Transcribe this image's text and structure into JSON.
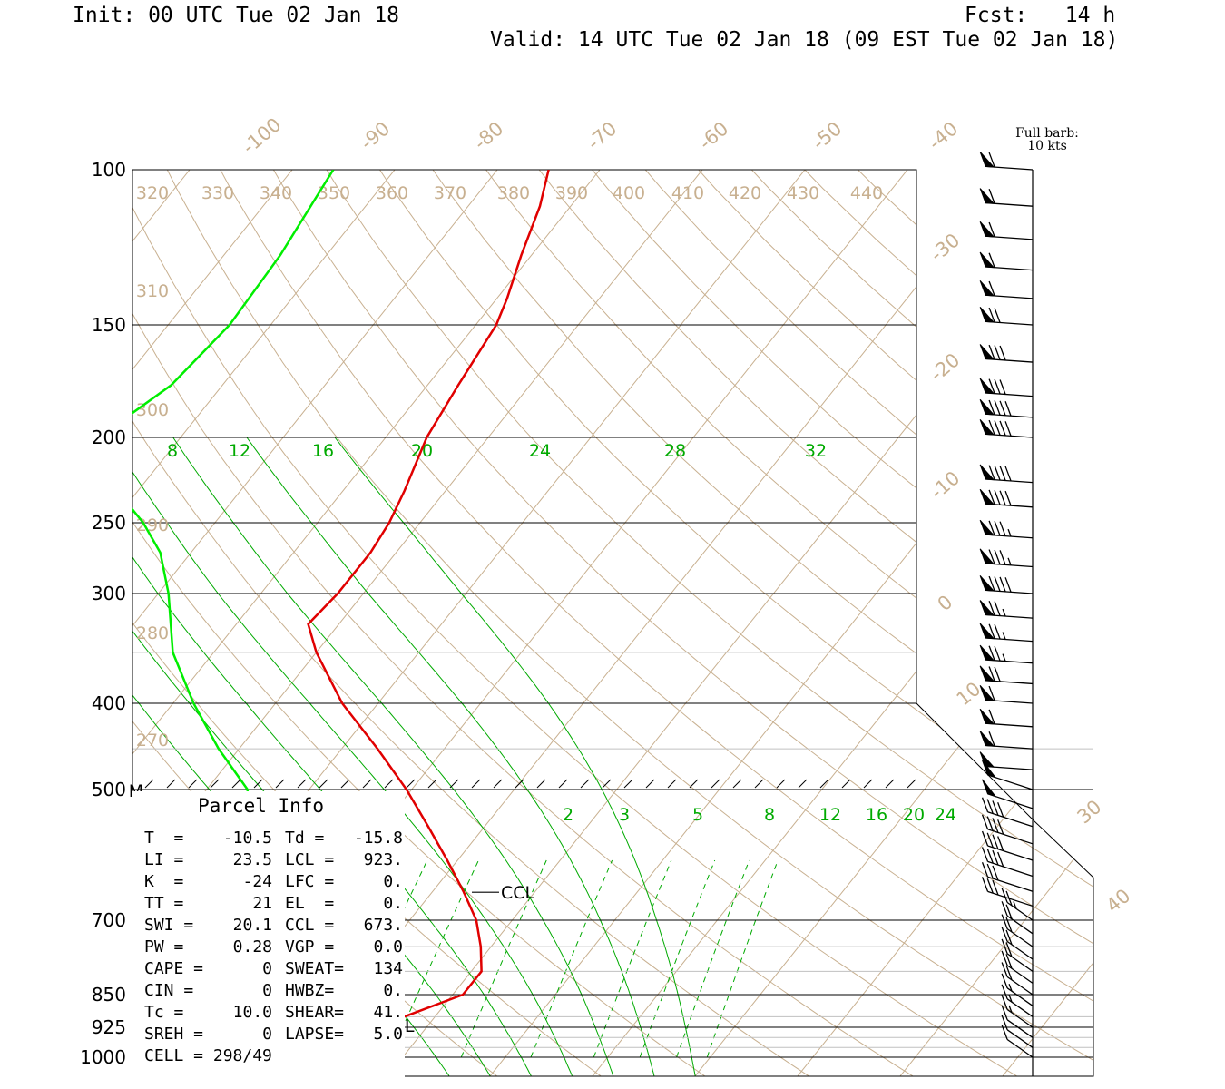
{
  "header": {
    "init": "Init: 00 UTC Tue 02 Jan 18",
    "fcst": "Fcst:   14 h",
    "valid": "Valid: 14 UTC Tue 02 Jan 18 (09 EST Tue 02 Jan 18)"
  },
  "barb_legend": {
    "line1": "Full barb:",
    "line2": "10 kts"
  },
  "parcel_info": {
    "title": "Parcel Info",
    "rows": [
      {
        "l": "T  =",
        "lv": "-10.5",
        "r": "Td =",
        "rv": "-15.8"
      },
      {
        "l": "LI =",
        "lv": "23.5",
        "r": "LCL =",
        "rv": "923."
      },
      {
        "l": "K  =",
        "lv": "-24",
        "r": "LFC =",
        "rv": "0."
      },
      {
        "l": "TT =",
        "lv": "21",
        "r": "EL  =",
        "rv": "0."
      },
      {
        "l": "SWI =",
        "lv": "20.1",
        "r": "CCL =",
        "rv": "673."
      },
      {
        "l": "PW =",
        "lv": "0.28",
        "r": "VGP =",
        "rv": "0.0"
      },
      {
        "l": "CAPE =",
        "lv": "0",
        "r": "SWEAT=",
        "rv": "134"
      },
      {
        "l": "CIN =",
        "lv": "0",
        "r": "HWBZ=",
        "rv": "0."
      },
      {
        "l": "Tc =",
        "lv": "10.0",
        "r": "SHEAR=",
        "rv": "41."
      },
      {
        "l": "SREH =",
        "lv": "0",
        "r": "LAPSE=",
        "rv": "5.0"
      },
      {
        "l": "CELL = 298/49",
        "lv": "",
        "r": "",
        "rv": ""
      }
    ]
  },
  "annotations": {
    "ccl": "CCL",
    "lcl": "LCL",
    "mid_marker": "M"
  },
  "colors": {
    "temperature": "#e00000",
    "dewpoint": "#00ee00",
    "isotherm": "#c8b090",
    "dry_adiabat": "#c8b090",
    "moist_adiabat": "#00aa00",
    "mixing_ratio": "#00aa00",
    "isobar": "#000000"
  },
  "chart_data": {
    "type": "skew-t",
    "pressure_levels": [
      100,
      150,
      200,
      250,
      300,
      400,
      500,
      700,
      850,
      925,
      1000
    ],
    "pressure_labels": [
      "100",
      "150",
      "200",
      "250",
      "300",
      "400",
      "500",
      "700",
      "850",
      "925",
      "1000"
    ],
    "isotherm_labels": [
      "-100",
      "-90",
      "-80",
      "-70",
      "-60",
      "-50",
      "-40",
      "-30",
      "-20",
      "-10",
      "0",
      "10",
      "30",
      "40"
    ],
    "dry_adiabat_labels": [
      "320",
      "330",
      "340",
      "350",
      "360",
      "370",
      "380",
      "390",
      "400",
      "410",
      "420",
      "430",
      "440",
      "310",
      "300",
      "290",
      "280",
      "270"
    ],
    "moist_adiabat_labels": [
      "8",
      "12",
      "16",
      "20",
      "24",
      "28",
      "32"
    ],
    "mixing_ratio_labels": [
      "2",
      "3",
      "5",
      "8",
      "12",
      "16",
      "20",
      "24"
    ],
    "temperature_profile_C": [
      {
        "p": 1000,
        "t": -10.5
      },
      {
        "p": 975,
        "t": -12.5
      },
      {
        "p": 925,
        "t": -14.5
      },
      {
        "p": 900,
        "t": -13.0
      },
      {
        "p": 850,
        "t": -9.0
      },
      {
        "p": 800,
        "t": -9.0
      },
      {
        "p": 750,
        "t": -11.0
      },
      {
        "p": 700,
        "t": -13.5
      },
      {
        "p": 650,
        "t": -17.0
      },
      {
        "p": 600,
        "t": -21.0
      },
      {
        "p": 550,
        "t": -25.5
      },
      {
        "p": 500,
        "t": -30.5
      },
      {
        "p": 450,
        "t": -36.5
      },
      {
        "p": 400,
        "t": -43.5
      },
      {
        "p": 350,
        "t": -50.0
      },
      {
        "p": 325,
        "t": -53.0
      },
      {
        "p": 300,
        "t": -52.5
      },
      {
        "p": 270,
        "t": -52.5
      },
      {
        "p": 250,
        "t": -53.0
      },
      {
        "p": 230,
        "t": -54.0
      },
      {
        "p": 200,
        "t": -56.0
      },
      {
        "p": 175,
        "t": -57.0
      },
      {
        "p": 150,
        "t": -58.0
      },
      {
        "p": 140,
        "t": -59.0
      },
      {
        "p": 125,
        "t": -61.0
      },
      {
        "p": 110,
        "t": -63.0
      },
      {
        "p": 100,
        "t": -65.0
      }
    ],
    "dewpoint_profile_C": [
      {
        "p": 1000,
        "t": -15.8
      },
      {
        "p": 975,
        "t": -17.0
      },
      {
        "p": 950,
        "t": -19.0
      },
      {
        "p": 925,
        "t": -21.0
      },
      {
        "p": 900,
        "t": -25.0
      },
      {
        "p": 850,
        "t": -29.0
      },
      {
        "p": 800,
        "t": -32.0
      },
      {
        "p": 700,
        "t": -36.0
      },
      {
        "p": 600,
        "t": -40.5
      },
      {
        "p": 500,
        "t": -46.0
      },
      {
        "p": 450,
        "t": -52.0
      },
      {
        "p": 400,
        "t": -58.0
      },
      {
        "p": 350,
        "t": -64.0
      },
      {
        "p": 300,
        "t": -69.0
      },
      {
        "p": 270,
        "t": -73.0
      },
      {
        "p": 250,
        "t": -77.0
      },
      {
        "p": 230,
        "t": -82.0
      },
      {
        "p": 215,
        "t": -87.0
      },
      {
        "p": 200,
        "t": -88.0
      },
      {
        "p": 175,
        "t": -85.0
      },
      {
        "p": 150,
        "t": -84.0
      },
      {
        "p": 125,
        "t": -84.5
      },
      {
        "p": 100,
        "t": -86.0
      }
    ],
    "wind_profile": [
      {
        "p": 100,
        "speed_kt": 60
      },
      {
        "p": 110,
        "speed_kt": 60
      },
      {
        "p": 120,
        "speed_kt": 60
      },
      {
        "p": 130,
        "speed_kt": 60
      },
      {
        "p": 140,
        "speed_kt": 60
      },
      {
        "p": 150,
        "speed_kt": 70
      },
      {
        "p": 165,
        "speed_kt": 80
      },
      {
        "p": 180,
        "speed_kt": 80
      },
      {
        "p": 190,
        "speed_kt": 90
      },
      {
        "p": 200,
        "speed_kt": 90
      },
      {
        "p": 225,
        "speed_kt": 90
      },
      {
        "p": 240,
        "speed_kt": 90
      },
      {
        "p": 260,
        "speed_kt": 85
      },
      {
        "p": 280,
        "speed_kt": 85
      },
      {
        "p": 300,
        "speed_kt": 90
      },
      {
        "p": 320,
        "speed_kt": 75
      },
      {
        "p": 340,
        "speed_kt": 75
      },
      {
        "p": 360,
        "speed_kt": 75
      },
      {
        "p": 380,
        "speed_kt": 70
      },
      {
        "p": 400,
        "speed_kt": 60
      },
      {
        "p": 425,
        "speed_kt": 60
      },
      {
        "p": 450,
        "speed_kt": 60
      },
      {
        "p": 475,
        "speed_kt": 50
      },
      {
        "p": 500,
        "speed_kt": 50
      },
      {
        "p": 525,
        "speed_kt": 50
      },
      {
        "p": 550,
        "speed_kt": 40
      },
      {
        "p": 575,
        "speed_kt": 40
      },
      {
        "p": 600,
        "speed_kt": 40
      },
      {
        "p": 625,
        "speed_kt": 40
      },
      {
        "p": 650,
        "speed_kt": 30
      },
      {
        "p": 675,
        "speed_kt": 30
      },
      {
        "p": 700,
        "speed_kt": 25
      },
      {
        "p": 725,
        "speed_kt": 20
      },
      {
        "p": 750,
        "speed_kt": 20
      },
      {
        "p": 775,
        "speed_kt": 20
      },
      {
        "p": 800,
        "speed_kt": 20
      },
      {
        "p": 825,
        "speed_kt": 20
      },
      {
        "p": 850,
        "speed_kt": 20
      },
      {
        "p": 875,
        "speed_kt": 15
      },
      {
        "p": 900,
        "speed_kt": 15
      },
      {
        "p": 925,
        "speed_kt": 15
      },
      {
        "p": 950,
        "speed_kt": 10
      },
      {
        "p": 975,
        "speed_kt": 10
      },
      {
        "p": 1000,
        "speed_kt": 10
      }
    ],
    "lcl_pressure": 923,
    "ccl_pressure": 673
  }
}
